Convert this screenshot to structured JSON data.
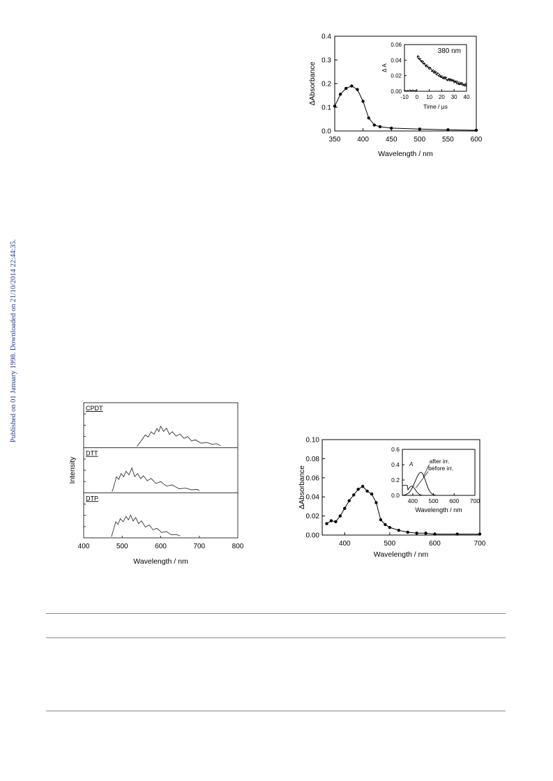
{
  "side_note": "Published on 01 January 1998. Downloaded on 21/10/2014 22:44:35.",
  "chart_data": [
    {
      "id": "fig-top-right",
      "type": "scatter",
      "title": "",
      "xlabel": "Wavelength / nm",
      "ylabel": "ΔAbsorbance",
      "xlim": [
        350,
        600
      ],
      "ylim": [
        0.0,
        0.4
      ],
      "xticks": [
        "350",
        "400",
        "450",
        "500",
        "550",
        "600"
      ],
      "yticks": [
        "0.0",
        "0.1",
        "0.2",
        "0.3",
        "0.4"
      ],
      "series": [
        {
          "x": [
            350,
            360,
            370,
            380,
            390,
            400,
            410,
            420,
            430,
            450,
            500,
            550,
            600
          ],
          "y": [
            0.105,
            0.155,
            0.18,
            0.19,
            0.175,
            0.125,
            0.055,
            0.025,
            0.018,
            0.012,
            0.008,
            0.005,
            0.003
          ]
        }
      ],
      "inset": {
        "type": "scatter",
        "xlabel": "Time / μs",
        "ylabel": "Δ A",
        "annotation": "380 nm",
        "xlim": [
          -10,
          40
        ],
        "ylim": [
          0.0,
          0.06
        ],
        "xticks": [
          "-10",
          "0",
          "10",
          "20",
          "30",
          "40"
        ],
        "yticks": [
          "0.00",
          "0.02",
          "0.04",
          "0.06"
        ],
        "decay": {
          "t0": 0,
          "baseline": 0.001,
          "peak": 0.046,
          "end": 0.008,
          "end_time": 40
        }
      }
    },
    {
      "id": "fig-bottom-left",
      "type": "line",
      "ylabel": "Intensity",
      "xlabel": "Wavelength / nm",
      "xlim": [
        400,
        800
      ],
      "xticks": [
        "400",
        "500",
        "600",
        "700",
        "800"
      ],
      "panels": [
        {
          "name": "CPDT",
          "onset": 540,
          "end": 755,
          "peaks": [
            [
              560,
              0.35
            ],
            [
              575,
              0.45
            ],
            [
              590,
              0.55
            ],
            [
              600,
              0.62
            ],
            [
              615,
              0.56
            ],
            [
              630,
              0.45
            ],
            [
              650,
              0.38
            ],
            [
              670,
              0.3
            ],
            [
              690,
              0.2
            ],
            [
              720,
              0.12
            ],
            [
              745,
              0.08
            ]
          ]
        },
        {
          "name": "DTT",
          "onset": 475,
          "end": 700,
          "peaks": [
            [
              485,
              0.45
            ],
            [
              497,
              0.55
            ],
            [
              510,
              0.62
            ],
            [
              525,
              0.72
            ],
            [
              540,
              0.55
            ],
            [
              555,
              0.48
            ],
            [
              575,
              0.4
            ],
            [
              600,
              0.3
            ],
            [
              630,
              0.2
            ],
            [
              665,
              0.1
            ],
            [
              695,
              0.06
            ]
          ]
        },
        {
          "name": "DTP",
          "onset": 473,
          "end": 650,
          "peaks": [
            [
              483,
              0.45
            ],
            [
              495,
              0.55
            ],
            [
              510,
              0.62
            ],
            [
              522,
              0.66
            ],
            [
              535,
              0.58
            ],
            [
              550,
              0.48
            ],
            [
              570,
              0.35
            ],
            [
              590,
              0.25
            ],
            [
              615,
              0.15
            ],
            [
              640,
              0.06
            ]
          ]
        }
      ]
    },
    {
      "id": "fig-bottom-right",
      "type": "scatter",
      "xlabel": "Wavelength / nm",
      "ylabel": "ΔAbsorbance",
      "xlim": [
        350,
        700
      ],
      "ylim": [
        0.0,
        0.1
      ],
      "xticks": [
        "400",
        "500",
        "600",
        "700"
      ],
      "yticks": [
        "0.00",
        "0.02",
        "0.04",
        "0.06",
        "0.08",
        "0.10"
      ],
      "series": [
        {
          "x": [
            360,
            370,
            380,
            390,
            400,
            410,
            420,
            430,
            440,
            450,
            460,
            470,
            480,
            490,
            500,
            520,
            540,
            560,
            580,
            600,
            650,
            700
          ],
          "y": [
            0.012,
            0.015,
            0.014,
            0.02,
            0.028,
            0.036,
            0.042,
            0.048,
            0.051,
            0.046,
            0.043,
            0.034,
            0.016,
            0.011,
            0.008,
            0.005,
            0.003,
            0.002,
            0.002,
            0.001,
            0.001,
            0.001
          ]
        }
      ],
      "inset": {
        "type": "line",
        "xlabel": "Wavelength / nm",
        "ylabel": "A",
        "xlim": [
          350,
          700
        ],
        "ylim": [
          0.0,
          0.6
        ],
        "xticks": [
          "400",
          "500",
          "600",
          "700"
        ],
        "yticks": [
          "0.0",
          "0.2",
          "0.4",
          "0.6"
        ],
        "series": [
          {
            "name": "after irr.",
            "peak_x": 440,
            "peak_y": 0.3,
            "width": 40
          },
          {
            "name": "before irr.",
            "peak_x": 395,
            "peak_y": 0.12,
            "width": 25
          }
        ]
      }
    }
  ]
}
